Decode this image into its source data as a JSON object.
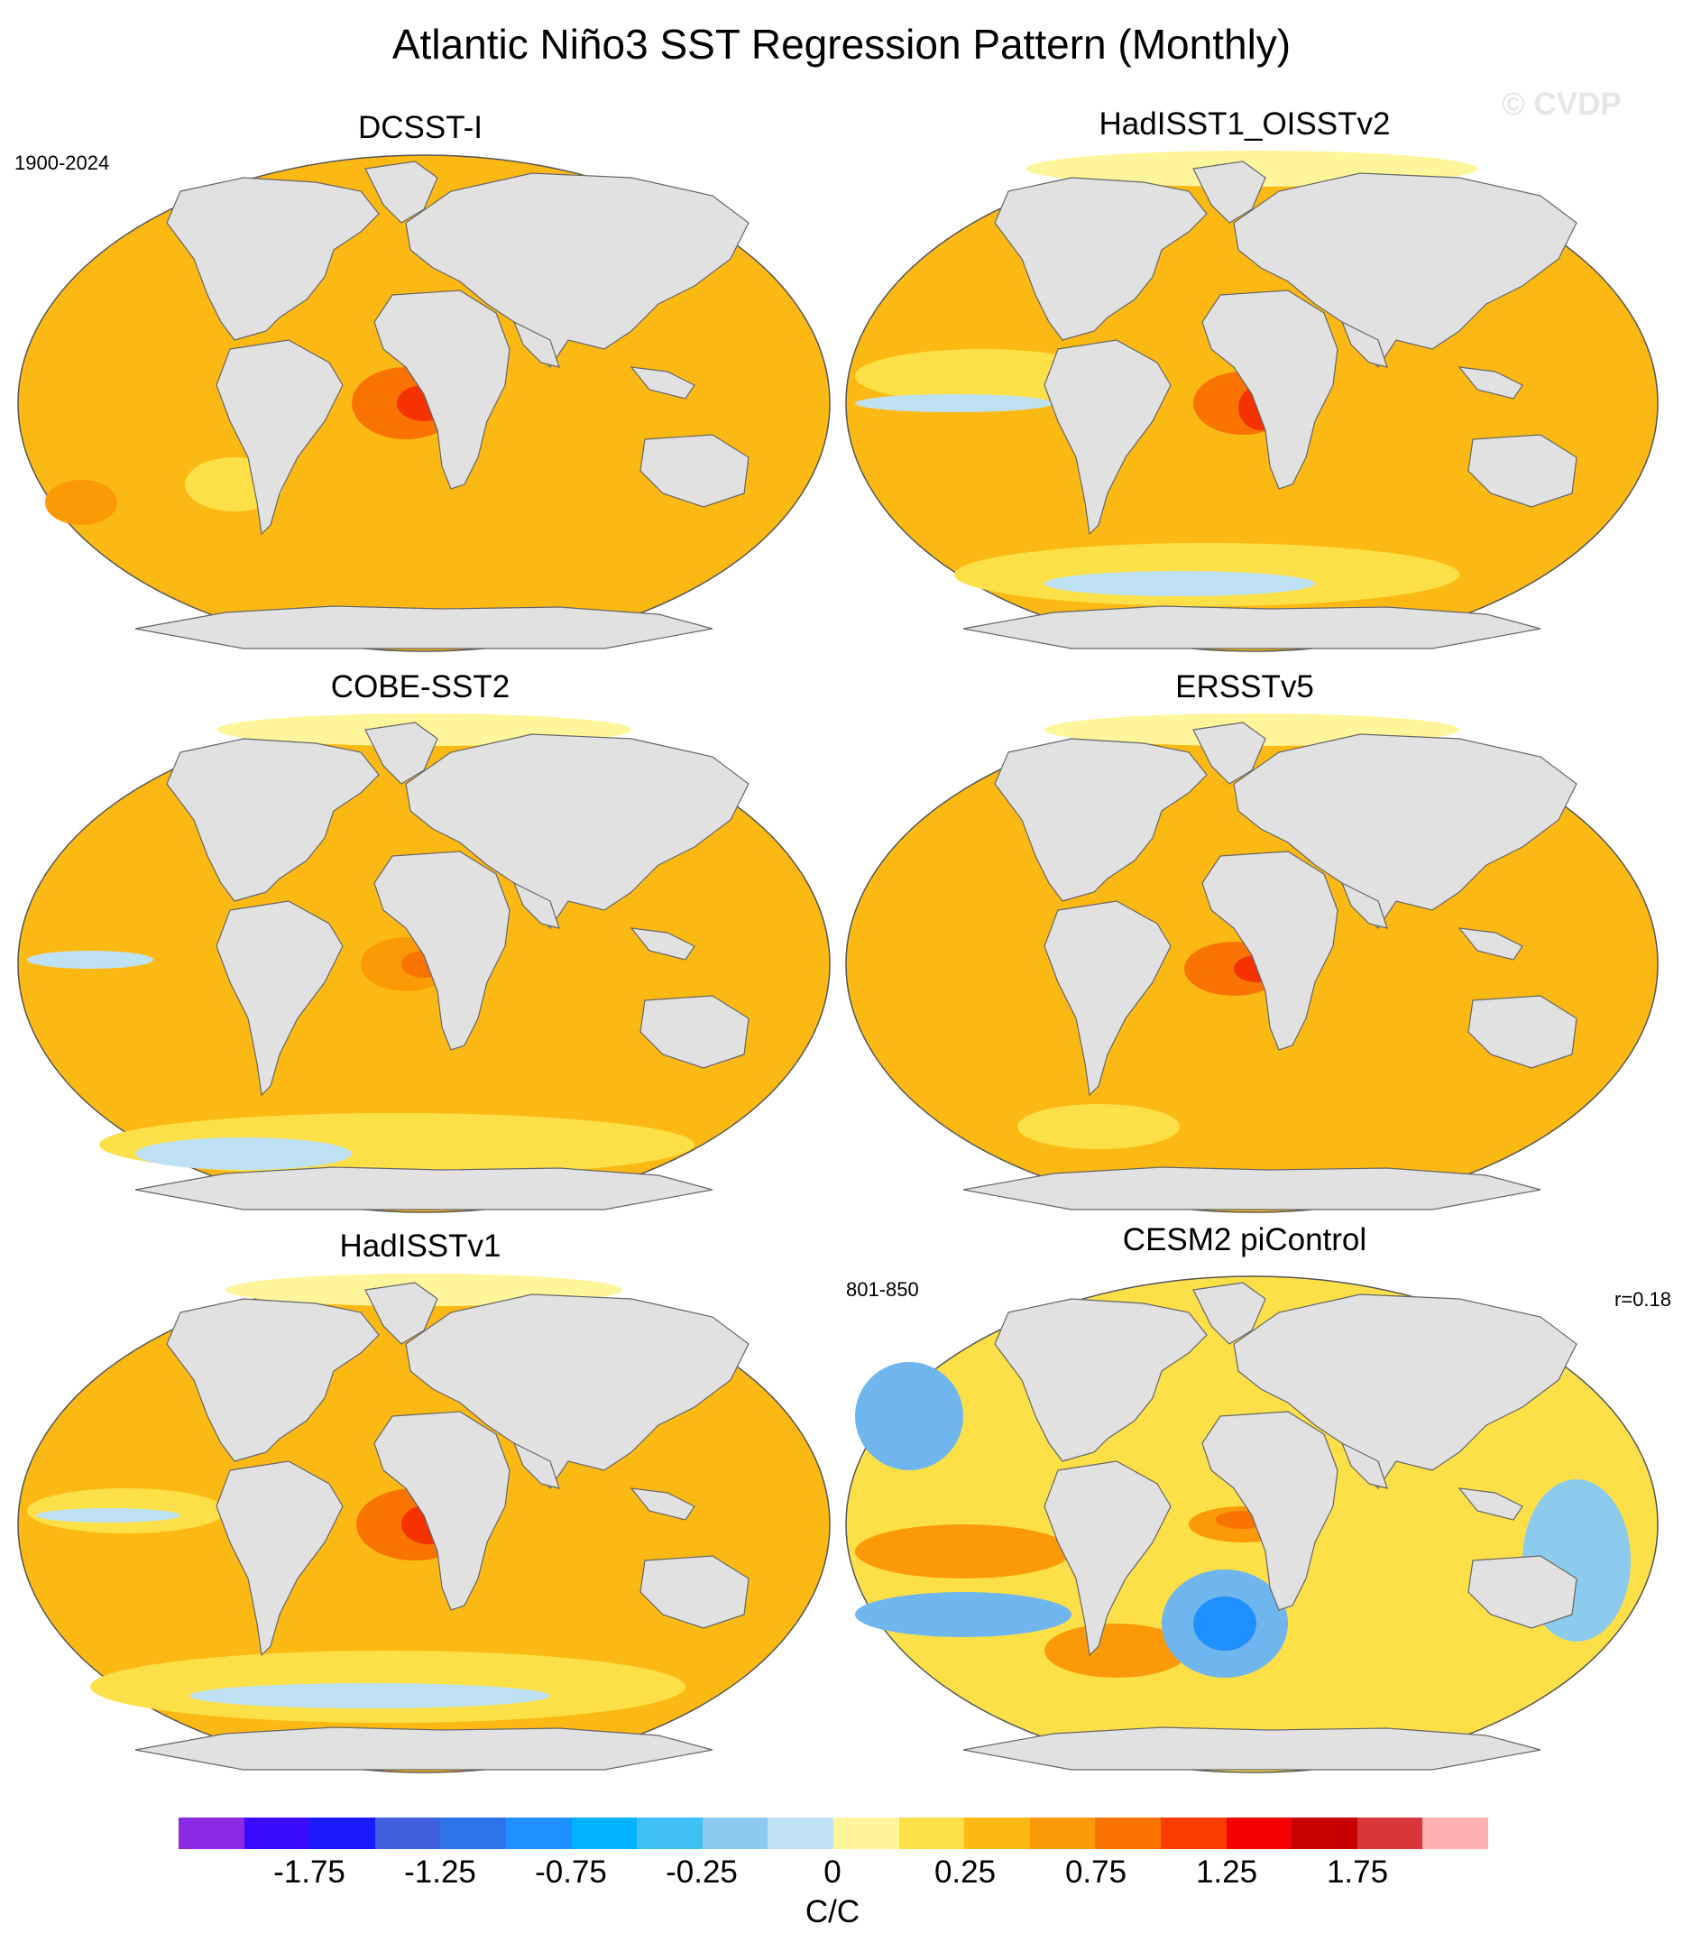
{
  "title": "Atlantic Niño3 SST Regression Pattern (Monthly)",
  "watermark": "© CVDP",
  "panels": [
    {
      "name": "DCSST-I",
      "period": "1900-2024",
      "base_color": "#fdb913"
    },
    {
      "name": "HadISST1_OISSTv2",
      "base_color": "#fdb913"
    },
    {
      "name": "COBE-SST2",
      "base_color": "#fdb913"
    },
    {
      "name": "ERSSTv5",
      "base_color": "#fdb913"
    },
    {
      "name": "HadISSTv1",
      "base_color": "#fdb913"
    },
    {
      "name": "CESM2 piControl",
      "period": "801-850",
      "pattern_correlation": "r=0.18",
      "base_color": "#fde047"
    }
  ],
  "colorbar": {
    "unit": "C/C",
    "tick_labels": [
      "-1.75",
      "-1.25",
      "-0.75",
      "-0.25",
      "0",
      "0.25",
      "0.75",
      "1.25",
      "1.75"
    ],
    "colors": [
      "#8a2be2",
      "#3a0cff",
      "#1a1aff",
      "#3f5fdc",
      "#2e73ea",
      "#1e90ff",
      "#00b2ff",
      "#3fc0f5",
      "#8ccbee",
      "#bfe1f4",
      "#fff59a",
      "#fde047",
      "#fdb913",
      "#fb9a06",
      "#f87300",
      "#fb3d00",
      "#f50000",
      "#c80000",
      "#d9363c",
      "#ffb0b0"
    ]
  },
  "land_color": "#e1e1e1",
  "anomaly_colors": {
    "warm": "#f87300",
    "hot": "#f53200",
    "cool": "#bfe1f4",
    "cold": "#6fb6ee"
  }
}
